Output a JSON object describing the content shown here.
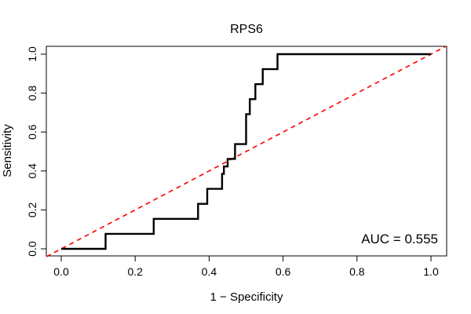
{
  "chart_data": {
    "type": "line",
    "title": "RPS6",
    "xlabel": "1 − Specificity",
    "ylabel": "Sensitivity",
    "xlim": [
      0,
      1
    ],
    "ylim": [
      0,
      1
    ],
    "xticks": [
      0.0,
      0.2,
      0.4,
      0.6,
      0.8,
      1.0
    ],
    "yticks": [
      0.0,
      0.2,
      0.4,
      0.6,
      0.8,
      1.0
    ],
    "xtick_labels": [
      "0.0",
      "0.2",
      "0.4",
      "0.6",
      "0.8",
      "1.0"
    ],
    "ytick_labels": [
      "0.0",
      "0.2",
      "0.4",
      "0.6",
      "0.8",
      "1.0"
    ],
    "annotation": "AUC = 0.555",
    "series": [
      {
        "name": "ROC",
        "color": "#000000",
        "x": [
          0,
          0.12,
          0.12,
          0.25,
          0.25,
          0.37,
          0.37,
          0.395,
          0.395,
          0.435,
          0.435,
          0.44,
          0.44,
          0.45,
          0.45,
          0.47,
          0.47,
          0.5,
          0.5,
          0.51,
          0.51,
          0.525,
          0.525,
          0.545,
          0.545,
          0.585,
          0.585,
          0.665,
          0.665,
          1.0
        ],
        "y": [
          0,
          0,
          0.077,
          0.077,
          0.154,
          0.154,
          0.231,
          0.231,
          0.308,
          0.308,
          0.385,
          0.385,
          0.423,
          0.423,
          0.462,
          0.462,
          0.538,
          0.538,
          0.692,
          0.692,
          0.769,
          0.769,
          0.846,
          0.846,
          0.923,
          0.923,
          1.0,
          1.0,
          1.0,
          1.0
        ]
      },
      {
        "name": "reference",
        "color": "#ff0000",
        "style": "dashed",
        "x": [
          -0.04,
          1.04
        ],
        "y": [
          -0.04,
          1.04
        ]
      }
    ]
  }
}
